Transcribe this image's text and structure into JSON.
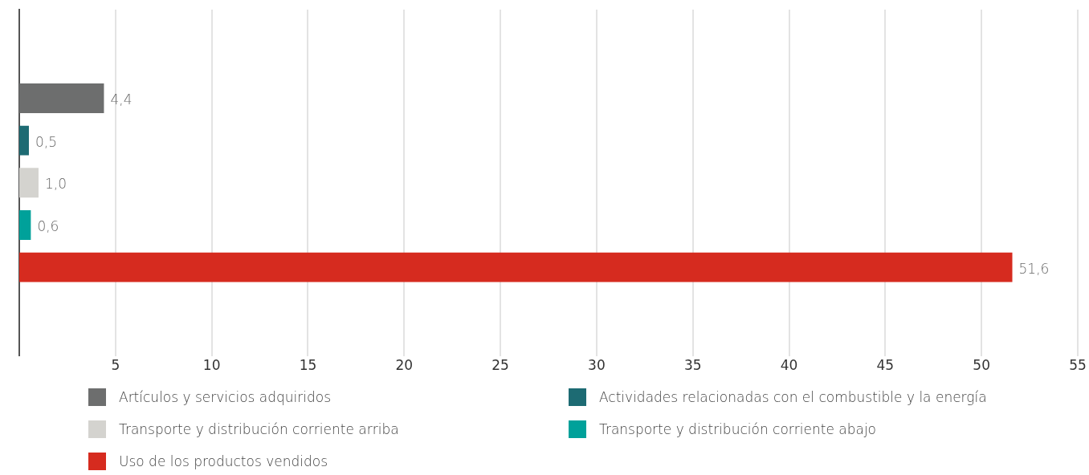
{
  "chart_data": {
    "type": "bar",
    "orientation": "horizontal",
    "categories": [
      null
    ],
    "series": [
      {
        "name": "Artículos y servicios adquiridos",
        "color": "#6d6e6e",
        "values": [
          4.4
        ],
        "value_labels": [
          "4,4"
        ]
      },
      {
        "name": "Actividades relacionadas con el combustible y la energía",
        "color": "#1d6b73",
        "values": [
          0.5
        ],
        "value_labels": [
          "0,5"
        ]
      },
      {
        "name": "Transporte y distribución corriente arriba",
        "color": "#d4d3cf",
        "values": [
          1.0
        ],
        "value_labels": [
          "1,0"
        ]
      },
      {
        "name": "Transporte y distribución corriente abajo",
        "color": "#00a19a",
        "values": [
          0.6
        ],
        "value_labels": [
          "0,6"
        ]
      },
      {
        "name": "Uso de los productos vendidos",
        "color": "#d62b1f",
        "values": [
          51.6
        ],
        "value_labels": [
          "51,6"
        ]
      }
    ],
    "xlim": [
      0,
      55
    ],
    "xticks": [
      5,
      10,
      15,
      20,
      25,
      30,
      35,
      40,
      45,
      50,
      55
    ],
    "grid": "x",
    "legend": "bottom"
  }
}
